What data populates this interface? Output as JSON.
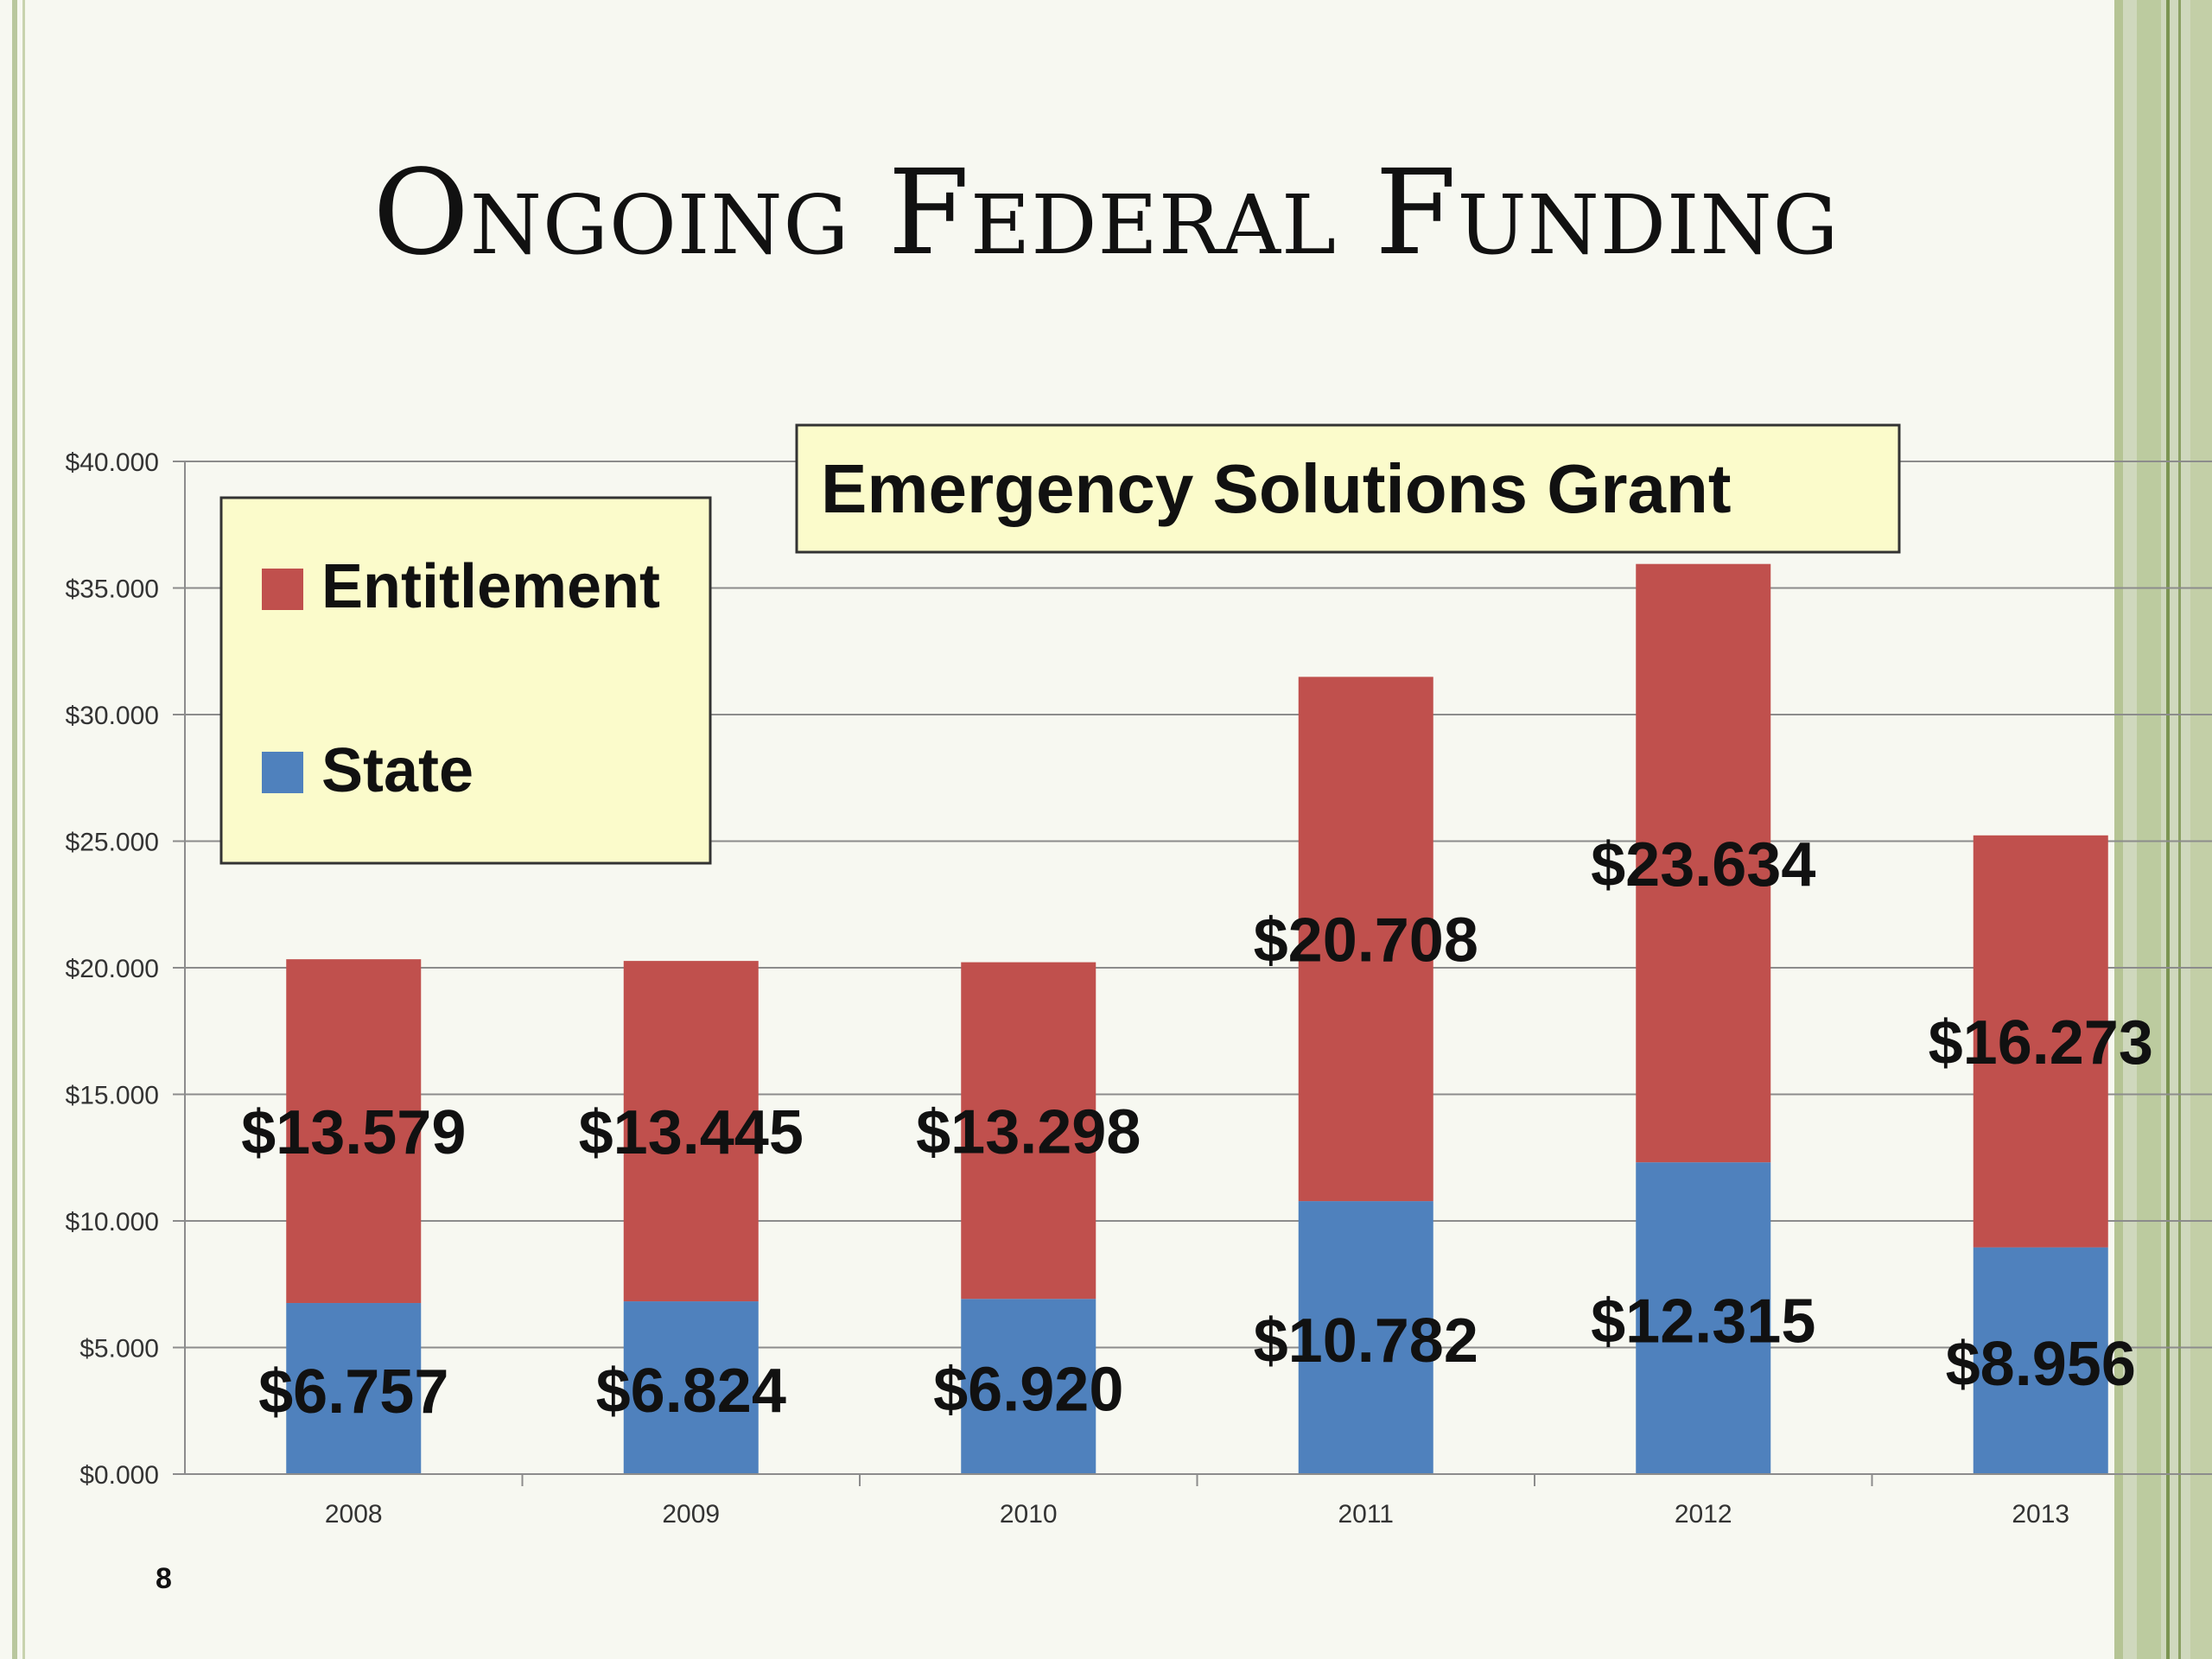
{
  "slide": {
    "title": "Ongoing Federal Funding",
    "page_number": "8"
  },
  "colors": {
    "entitlement": "#c0504d",
    "state": "#4f81bd",
    "legend_bg": "#fbfbcb",
    "grid": "#8c8c8c"
  },
  "chart_data": {
    "type": "bar",
    "stacked": true,
    "title": "Emergency Solutions Grant",
    "categories": [
      "2008",
      "2009",
      "2010",
      "2011",
      "2012",
      "2013"
    ],
    "series": [
      {
        "name": "State",
        "values": [
          6.757,
          6.824,
          6.92,
          10.782,
          12.315,
          8.956
        ],
        "labels": [
          "$6.757",
          "$6.824",
          "$6.920",
          "$10.782",
          "$12.315",
          "$8.956"
        ]
      },
      {
        "name": "Entitlement",
        "values": [
          13.579,
          13.445,
          13.298,
          20.708,
          23.634,
          16.273
        ],
        "labels": [
          "$13.579",
          "$13.445",
          "$13.298",
          "$20.708",
          "$23.634",
          "$16.273"
        ]
      }
    ],
    "ylim": [
      0,
      40
    ],
    "yticks": [
      0,
      5,
      10,
      15,
      20,
      25,
      30,
      35,
      40
    ],
    "ytick_labels": [
      "$0.000",
      "$5.000",
      "$10.000",
      "$15.000",
      "$20.000",
      "$25.000",
      "$30.000",
      "$35.000",
      "$40.000"
    ],
    "grid": true,
    "legend_position": "top-left",
    "legend": [
      "Entitlement",
      "State"
    ]
  }
}
